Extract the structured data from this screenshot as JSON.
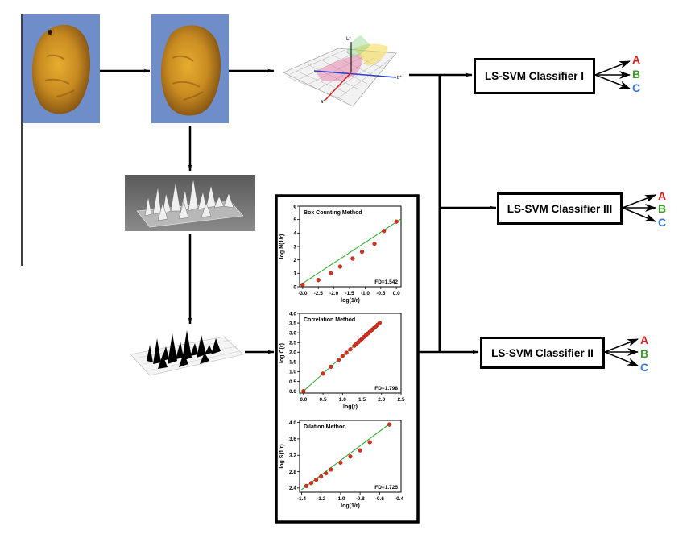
{
  "colors": {
    "photo_bg": "#6f8dc8",
    "mango_dark": "#8a5a14",
    "mango_light": "#e0a62a",
    "out_a": "#d21f1f",
    "out_b": "#3f9b2a",
    "out_c": "#3f78d0",
    "fit_line": "#22aa22",
    "point_fill": "#d9301f"
  },
  "icons": {
    "mango_original": "mango-photo-icon",
    "mango_segmented": "mango-segmented-photo-icon",
    "lab_space": "lab-color-space-icon",
    "surface_gray": "grayscale-surface-icon",
    "surface_binary": "binary-surface-icon"
  },
  "lab_axes": {
    "l": "L*",
    "a": "a*",
    "b": "b*"
  },
  "classifiers": {
    "c1": {
      "label": "LS-SVM Classifier I",
      "outputs": [
        "A",
        "B",
        "C"
      ]
    },
    "c2": {
      "label": "LS-SVM Classifier II",
      "outputs": [
        "A",
        "B",
        "C"
      ]
    },
    "c3": {
      "label": "LS-SVM Classifier III",
      "outputs": [
        "A",
        "B",
        "C"
      ]
    }
  },
  "chart_data": [
    {
      "type": "scatter",
      "title": "Box Counting Method",
      "xlabel": "log(1/r)",
      "ylabel": "log N(1/r)",
      "annotation": "FD=1.542",
      "xlim": [
        -3.1,
        0.15
      ],
      "ylim": [
        0,
        6
      ],
      "xticks": [
        "-3.0",
        "-2.5",
        "-2.0",
        "-1.5",
        "-1.0",
        "-0.5",
        "0.0"
      ],
      "yticks": [
        "0",
        "1",
        "2",
        "3",
        "4",
        "5",
        "6"
      ],
      "x": [
        -3.0,
        -2.5,
        -2.1,
        -1.8,
        -1.4,
        -1.1,
        -0.7,
        -0.4,
        0.0
      ],
      "y": [
        0.15,
        0.5,
        1.0,
        1.5,
        2.1,
        2.6,
        3.2,
        4.15,
        4.85
      ],
      "fit": [
        [
          -3.1,
          0.1
        ],
        [
          0.15,
          5.05
        ]
      ]
    },
    {
      "type": "scatter",
      "title": "Correlation Method",
      "xlabel": "log(r)",
      "ylabel": "log C(r)",
      "annotation": "FD=1.798",
      "xlim": [
        -0.1,
        2.5
      ],
      "ylim": [
        -0.1,
        4.0
      ],
      "xticks": [
        "0.0",
        "0.5",
        "1.0",
        "1.5",
        "2.0",
        "2.5"
      ],
      "yticks": [
        "0.0",
        "0.5",
        "1.0",
        "1.5",
        "2.0",
        "2.5",
        "3.0",
        "3.5",
        "4.0"
      ],
      "x": [
        0.0,
        0.5,
        0.7,
        0.9,
        1.0,
        1.1,
        1.2,
        1.3,
        1.35,
        1.4,
        1.45,
        1.5,
        1.55,
        1.6,
        1.65,
        1.7,
        1.75,
        1.8,
        1.85,
        1.9,
        1.95
      ],
      "y": [
        0.0,
        0.9,
        1.25,
        1.6,
        1.8,
        1.97,
        2.15,
        2.33,
        2.42,
        2.51,
        2.6,
        2.69,
        2.78,
        2.87,
        2.96,
        3.05,
        3.14,
        3.23,
        3.32,
        3.41,
        3.5
      ],
      "fit": [
        [
          -0.1,
          -0.18
        ],
        [
          2.0,
          3.6
        ]
      ]
    },
    {
      "type": "scatter",
      "title": "Dilation Method",
      "xlabel": "log(1/r)",
      "ylabel": "log S(1/r)",
      "annotation": "FD=1.725",
      "xlim": [
        -1.42,
        -0.38
      ],
      "ylim": [
        2.3,
        4.05
      ],
      "xticks": [
        "-1.4",
        "-1.2",
        "-1.0",
        "-0.8",
        "-0.6",
        "-0.4"
      ],
      "yticks": [
        "2.4",
        "2.8",
        "3.2",
        "3.6",
        "4.0"
      ],
      "xtickvals": [
        -1.4,
        -1.2,
        -1.0,
        -0.8,
        -0.6,
        -0.4
      ],
      "ytickvals": [
        2.4,
        2.8,
        3.2,
        3.6,
        4.0
      ],
      "x": [
        -1.35,
        -1.3,
        -1.25,
        -1.2,
        -1.15,
        -1.1,
        -1.0,
        -0.9,
        -0.8,
        -0.7,
        -0.5
      ],
      "y": [
        2.45,
        2.52,
        2.6,
        2.68,
        2.76,
        2.85,
        3.02,
        3.17,
        3.32,
        3.52,
        3.95
      ],
      "fit": [
        [
          -1.4,
          2.36
        ],
        [
          -0.48,
          4.0
        ]
      ]
    }
  ]
}
